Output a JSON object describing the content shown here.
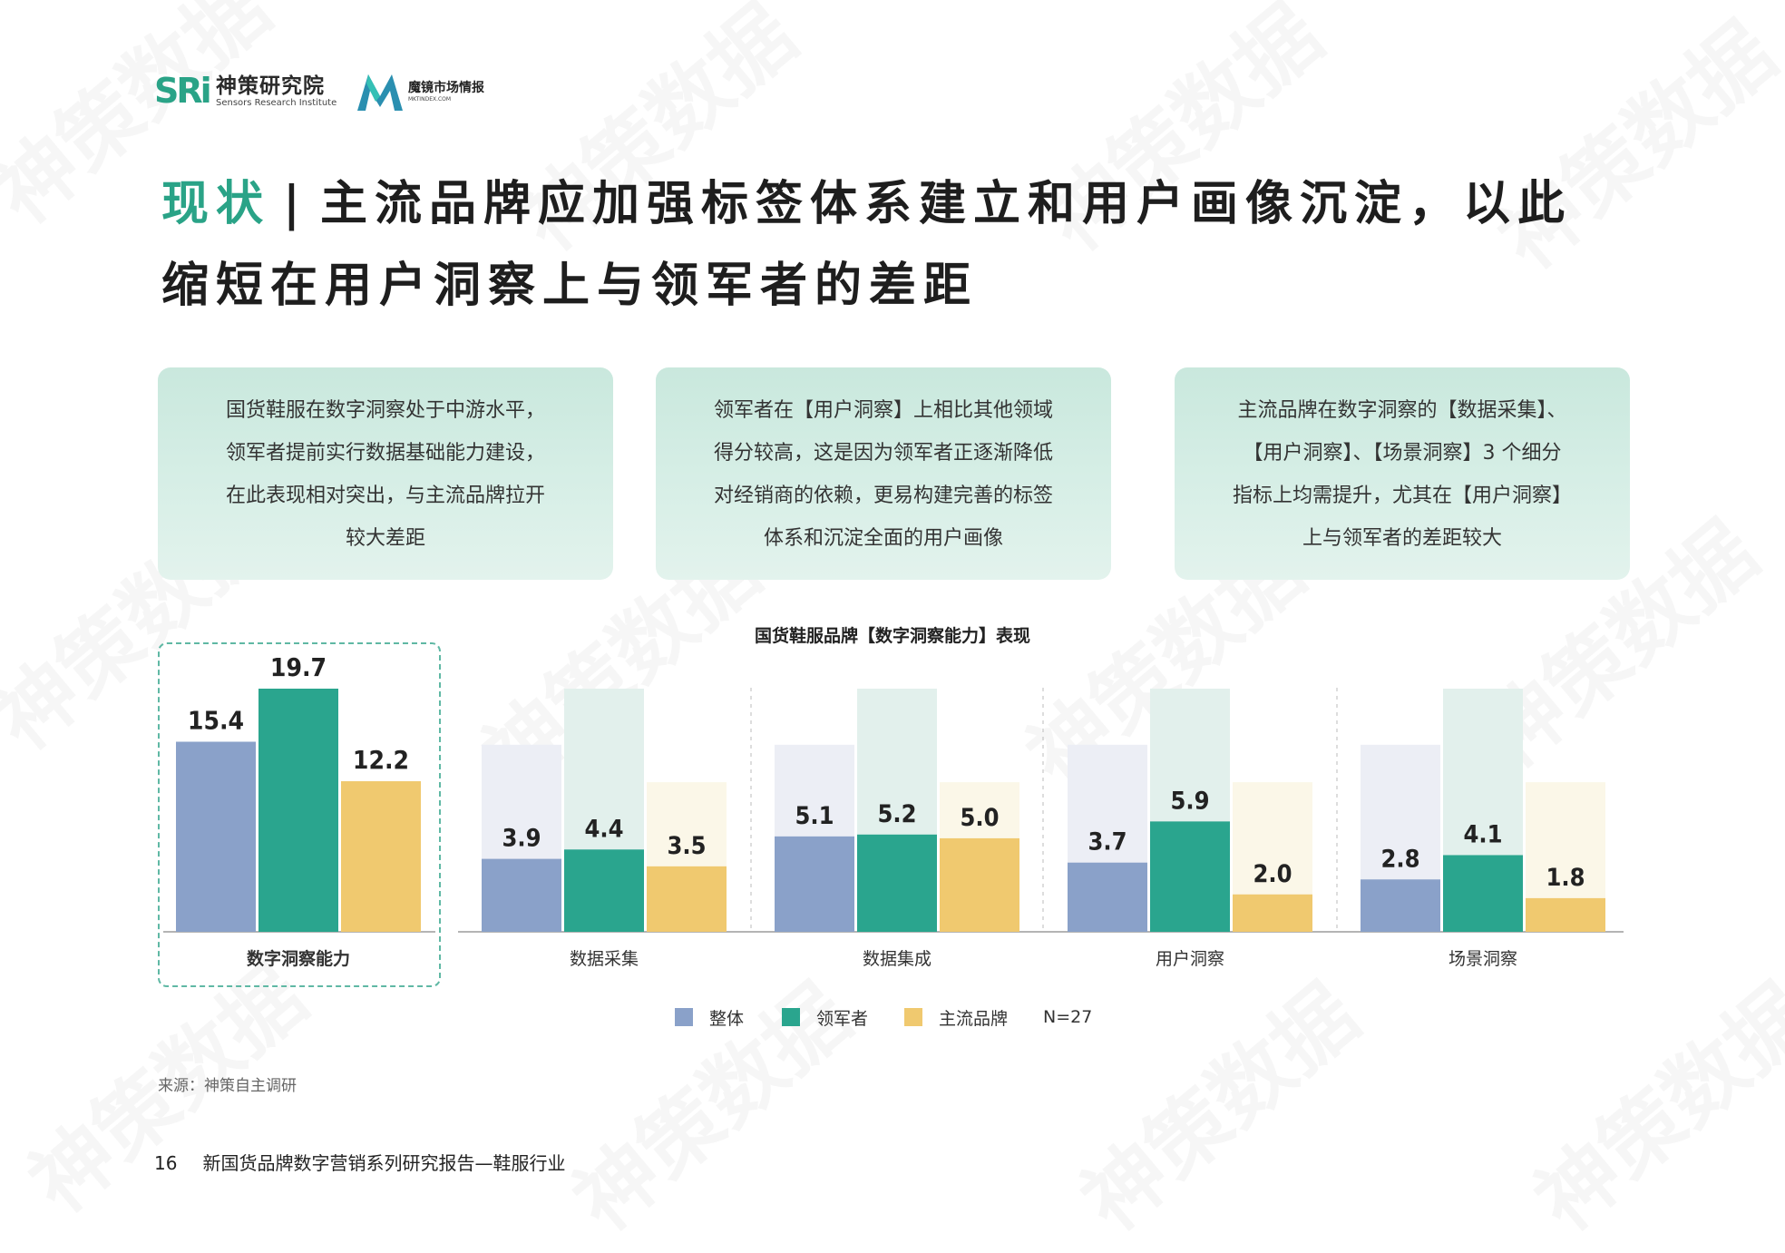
{
  "header": {
    "logo1_mark": "SRi",
    "logo1_cn": "神策研究院",
    "logo1_en": "Sensors Research Institute",
    "logo2_cn": "魔镜市场情报",
    "logo2_en": "MKTINDEX.COM"
  },
  "title": {
    "accent": "现状",
    "separator": "|",
    "line1_rest": "主流品牌应加强标签体系建立和用户画像沉淀，以此",
    "line2": "缩短在用户洞察上与领军者的差距"
  },
  "cards": [
    {
      "lines": [
        "国货鞋服在数字洞察处于中游水平，",
        "领军者提前实行数据基础能力建设，",
        "在此表现相对突出，与主流品牌拉开",
        "较大差距"
      ]
    },
    {
      "lines": [
        "领军者在【用户洞察】上相比其他领域",
        "得分较高，这是因为领军者正逐渐降低",
        "对经销商的依赖，更易构建完善的标签",
        "体系和沉淀全面的用户画像"
      ]
    },
    {
      "lines": [
        "主流品牌在数字洞察的【数据采集】、",
        "【用户洞察】、【场景洞察】3 个细分",
        "指标上均需提升，尤其在【用户洞察】",
        "上与领军者的差距较大"
      ]
    }
  ],
  "chart_data": {
    "type": "bar",
    "title": "国货鞋服品牌【数字洞察能力】表现",
    "categories": [
      "数字洞察能力",
      "数据采集",
      "数据集成",
      "用户洞察",
      "场景洞察"
    ],
    "series": [
      {
        "name": "整体",
        "color": "#8aa1c9",
        "values": [
          15.4,
          3.9,
          5.1,
          3.7,
          2.8
        ]
      },
      {
        "name": "领军者",
        "color": "#2aa58e",
        "values": [
          19.7,
          4.4,
          5.2,
          5.9,
          4.1
        ]
      },
      {
        "name": "主流品牌",
        "color": "#f0c96f",
        "values": [
          12.2,
          3.5,
          5.0,
          2.0,
          1.8
        ]
      }
    ],
    "sub_max": [
      {
        "name": "整体",
        "value": 10
      },
      {
        "name": "领军者",
        "value": 13
      },
      {
        "name": "主流品牌",
        "value": 8
      }
    ],
    "ylim_total": [
      0,
      19.7
    ],
    "legend_note": "N=27",
    "legend_position": "bottom-center",
    "grid": false
  },
  "source": "来源：神策自主调研",
  "footer": {
    "page": "16",
    "report": "新国货品牌数字营销系列研究报告—鞋服行业"
  },
  "watermark": "神策数据"
}
